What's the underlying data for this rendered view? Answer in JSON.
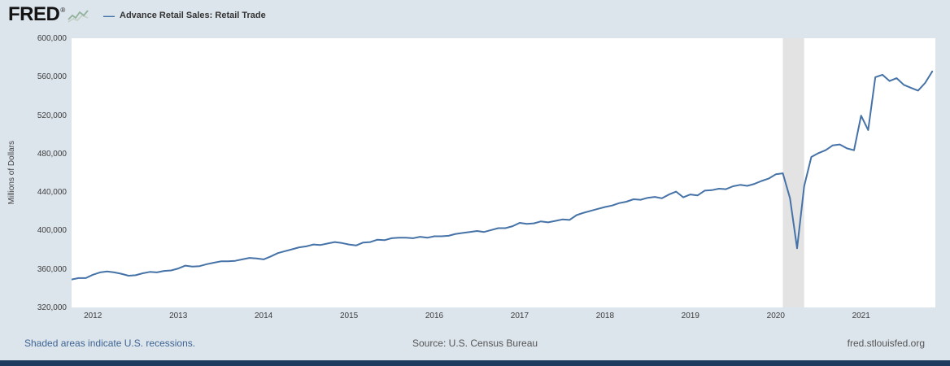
{
  "header": {
    "logo": "FRED",
    "logo_reg": "®"
  },
  "legend": {
    "swatch": "—",
    "series_label": "Advance Retail Sales: Retail Trade"
  },
  "footer": {
    "recession_note": "Shaded areas indicate U.S. recessions.",
    "source": "Source: U.S. Census Bureau",
    "site": "fred.stlouisfed.org"
  },
  "colors": {
    "background": "#dce4ec",
    "line": "#4572a7",
    "recession_band": "#e3e3e3",
    "bottom_bar": "#1d3a5f",
    "link_blue": "#3e6593"
  },
  "chart_data": {
    "type": "line",
    "title": "Advance Retail Sales: Retail Trade",
    "xlabel": "",
    "ylabel": "Millions of Dollars",
    "ylim": [
      320000,
      600000
    ],
    "ytick_step": 40000,
    "xlim": [
      2011.75,
      2021.87
    ],
    "xticks": [
      2012,
      2013,
      2014,
      2015,
      2016,
      2017,
      2018,
      2019,
      2020,
      2021
    ],
    "grid": false,
    "legend_position": "top-left",
    "recession_color": "#e3e3e3",
    "recession_bands": [
      [
        2020.083,
        2020.333
      ]
    ],
    "series": [
      {
        "name": "Advance Retail Sales: Retail Trade",
        "color": "#4572a7",
        "units": "Millions of Dollars",
        "frequency": "monthly",
        "x_start": 2011.75,
        "x_start_label": "Oct 2011",
        "x_end_label": "Nov 2021",
        "values": [
          349000,
          350500,
          350500,
          354000,
          356500,
          357500,
          356500,
          355000,
          353000,
          353500,
          355500,
          357000,
          356500,
          358000,
          358500,
          360500,
          363500,
          362500,
          363000,
          365000,
          366500,
          368000,
          368000,
          368500,
          370000,
          371500,
          371000,
          370000,
          373000,
          376500,
          378500,
          380500,
          382500,
          383500,
          385500,
          385000,
          386500,
          388000,
          387000,
          385500,
          384500,
          387500,
          388000,
          390500,
          390000,
          392000,
          392500,
          392500,
          392000,
          393500,
          392500,
          394000,
          394000,
          394500,
          396500,
          397500,
          398500,
          399500,
          398500,
          400500,
          402500,
          402500,
          404500,
          408000,
          407000,
          407500,
          409500,
          408500,
          410000,
          411500,
          411000,
          416000,
          418500,
          420500,
          422500,
          424500,
          426000,
          428500,
          430000,
          432500,
          432000,
          434000,
          435000,
          433500,
          437500,
          440500,
          434500,
          437500,
          436500,
          441500,
          442000,
          443500,
          443000,
          446000,
          447500,
          446500,
          448500,
          451500,
          454000,
          458500,
          459500,
          433500,
          381500,
          446000,
          476500,
          480500,
          483500,
          488500,
          489500,
          485500,
          483500,
          519500,
          504500,
          559500,
          562000,
          555500,
          558500,
          551500,
          548500,
          545500,
          553500,
          565500
        ]
      }
    ]
  }
}
